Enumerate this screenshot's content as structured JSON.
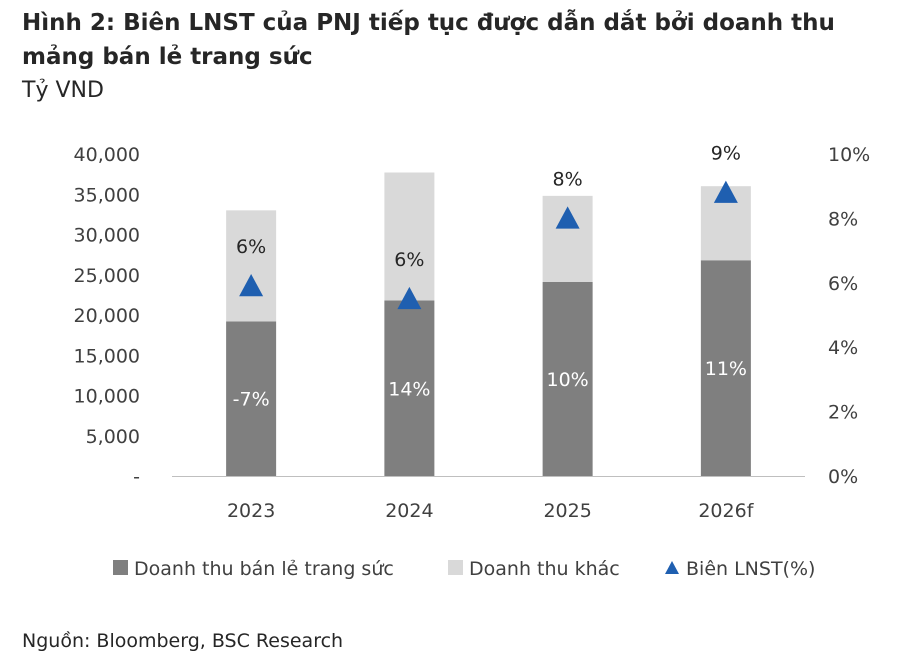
{
  "title": "Hình 2: Biên LNST của PNJ tiếp tục được dẫn dắt bởi doanh thu mảng bán lẻ trang sức",
  "unit_label": "Tỷ VND",
  "source": "Nguồn: Bloomberg, BSC Research",
  "chart_data": {
    "type": "bar",
    "stacked": true,
    "categories": [
      "2023",
      "2024",
      "2025",
      "2026f"
    ],
    "series": [
      {
        "name": "Doanh thu bán lẻ trang sức",
        "values": [
          19200,
          21800,
          24100,
          26800
        ],
        "labels": [
          "-7%",
          "14%",
          "10%",
          "11%"
        ],
        "color": "#7f7f7f",
        "axis": "left"
      },
      {
        "name": "Doanh thu khác",
        "values": [
          13800,
          15900,
          10700,
          9200
        ],
        "color": "#d9d9d9",
        "axis": "left"
      },
      {
        "name": "Biên LNST(%)",
        "values": [
          5.9,
          5.5,
          8.0,
          8.8
        ],
        "labels": [
          "6%",
          "6%",
          "8%",
          "9%"
        ],
        "color": "#1f5fb0",
        "axis": "right",
        "marker": "triangle"
      }
    ],
    "y_left": {
      "min": 0,
      "max": 40000,
      "step": 5000,
      "ticks": [
        "-",
        "5,000",
        "10,000",
        "15,000",
        "20,000",
        "25,000",
        "30,000",
        "35,000",
        "40,000"
      ]
    },
    "y_right": {
      "min": 0,
      "max": 10,
      "step": 2,
      "ticks": [
        "0%",
        "2%",
        "4%",
        "6%",
        "8%",
        "10%"
      ]
    },
    "legend_position": "bottom",
    "grid": false
  }
}
